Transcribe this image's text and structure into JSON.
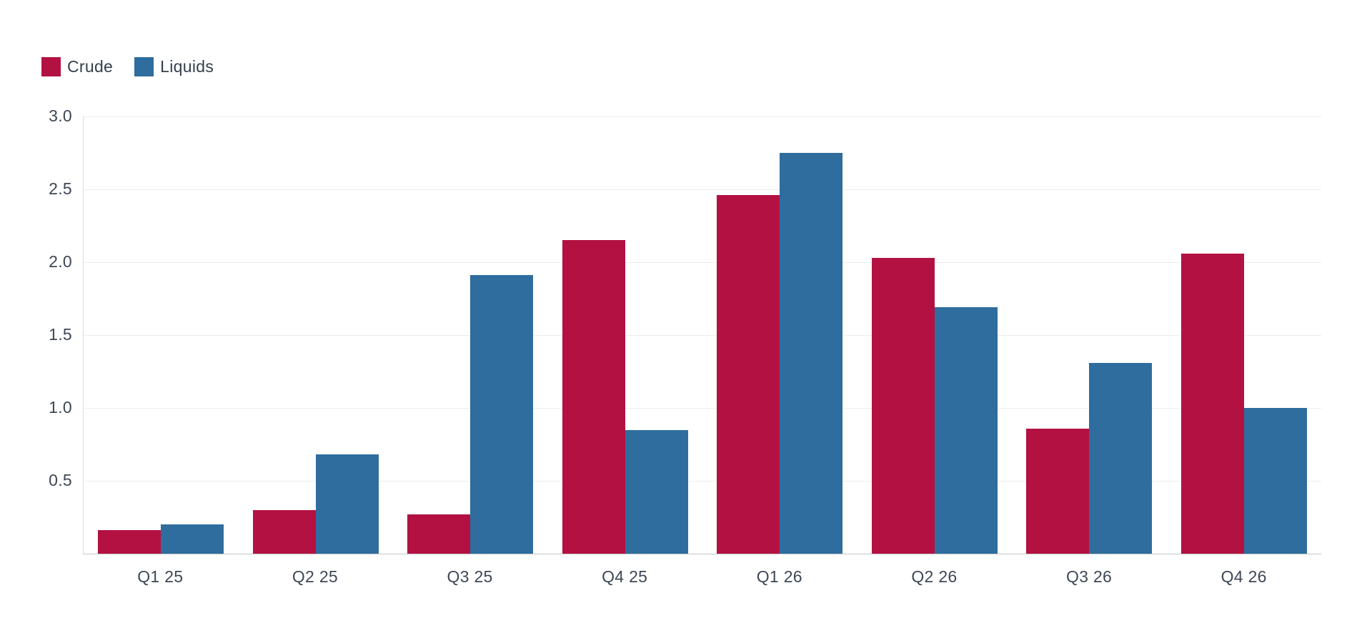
{
  "chart_data": {
    "type": "bar",
    "title": "",
    "xlabel": "",
    "ylabel": "",
    "categories": [
      "Q1 25",
      "Q2 25",
      "Q3 25",
      "Q4 25",
      "Q1 26",
      "Q2 26",
      "Q3 26",
      "Q4 26"
    ],
    "series": [
      {
        "name": "Crude",
        "color": "#b31142",
        "values": [
          0.16,
          0.3,
          0.27,
          2.15,
          2.46,
          2.03,
          0.86,
          2.06
        ]
      },
      {
        "name": "Liquids",
        "color": "#2e6d9e",
        "values": [
          0.2,
          0.68,
          1.91,
          0.85,
          2.75,
          1.69,
          1.31,
          1.0
        ]
      }
    ],
    "ylim": [
      0,
      3.0
    ],
    "yticks": [
      0.5,
      1.0,
      1.5,
      2.0,
      2.5,
      3.0
    ],
    "grid": true,
    "legend_position": "top-left"
  },
  "legend": {
    "items": [
      {
        "label": "Crude",
        "color": "#b31142"
      },
      {
        "label": "Liquids",
        "color": "#2e6d9e"
      }
    ]
  }
}
